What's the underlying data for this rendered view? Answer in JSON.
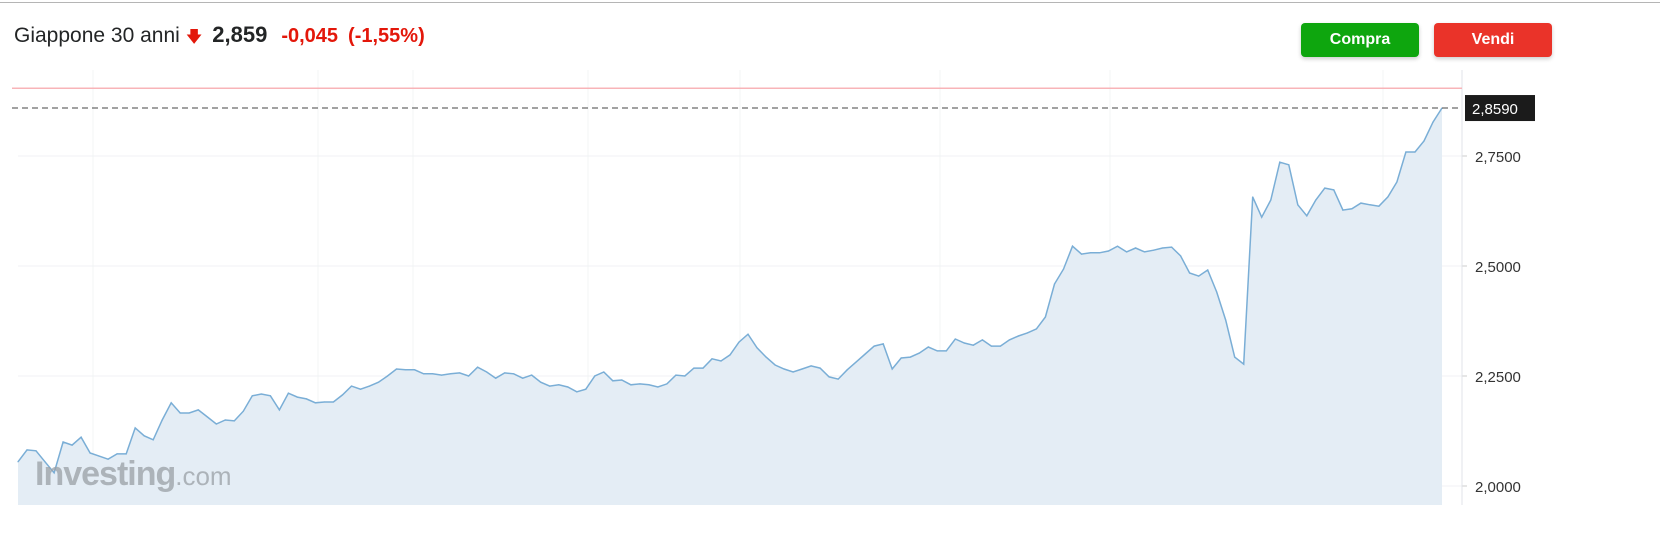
{
  "header": {
    "title": "Giappone 30 anni",
    "arrow_icon": "arrow-down-icon",
    "price": "2,859",
    "change": "-0,045",
    "change_pct": "(-1,55%)"
  },
  "buttons": {
    "buy": "Compra",
    "sell": "Vendi"
  },
  "logo": {
    "name": "Investing",
    "suffix": ".com"
  },
  "colors": {
    "line": "#7aaed6",
    "fill": "#e4edf5",
    "buy": "#0ea60e",
    "sell": "#ea3329",
    "prev_close": "#f8b4b8",
    "down": "#e3170a"
  },
  "chart_data": {
    "type": "area",
    "title": "",
    "xlabel": "",
    "ylabel": "",
    "ylim": [
      2.0,
      2.92
    ],
    "y_ticks": [
      "2,0000",
      "2,2500",
      "2,5000",
      "2,7500"
    ],
    "y_tick_values": [
      2.0,
      2.25,
      2.5,
      2.75
    ],
    "last_value": 2.859,
    "last_label": "2,8590",
    "previous_close": 2.904,
    "grid": true,
    "y_axis": "right",
    "values": [
      2.055,
      2.082,
      2.08,
      2.055,
      2.03,
      2.1,
      2.093,
      2.111,
      2.075,
      2.068,
      2.061,
      2.073,
      2.073,
      2.132,
      2.114,
      2.105,
      2.15,
      2.189,
      2.166,
      2.166,
      2.173,
      2.157,
      2.141,
      2.15,
      2.148,
      2.17,
      2.205,
      2.209,
      2.205,
      2.173,
      2.211,
      2.202,
      2.198,
      2.189,
      2.191,
      2.191,
      2.207,
      2.227,
      2.22,
      2.227,
      2.236,
      2.25,
      2.266,
      2.264,
      2.264,
      2.255,
      2.255,
      2.252,
      2.255,
      2.257,
      2.25,
      2.27,
      2.259,
      2.245,
      2.257,
      2.255,
      2.245,
      2.252,
      2.236,
      2.227,
      2.23,
      2.225,
      2.214,
      2.22,
      2.25,
      2.259,
      2.239,
      2.241,
      2.23,
      2.232,
      2.23,
      2.225,
      2.232,
      2.252,
      2.25,
      2.268,
      2.268,
      2.289,
      2.284,
      2.298,
      2.327,
      2.345,
      2.314,
      2.293,
      2.275,
      2.266,
      2.259,
      2.266,
      2.273,
      2.268,
      2.248,
      2.243,
      2.264,
      2.282,
      2.3,
      2.318,
      2.323,
      2.266,
      2.291,
      2.293,
      2.302,
      2.316,
      2.307,
      2.307,
      2.334,
      2.325,
      2.32,
      2.332,
      2.318,
      2.318,
      2.332,
      2.341,
      2.348,
      2.357,
      2.384,
      2.459,
      2.493,
      2.545,
      2.527,
      2.53,
      2.53,
      2.534,
      2.545,
      2.532,
      2.541,
      2.532,
      2.536,
      2.541,
      2.543,
      2.523,
      2.484,
      2.477,
      2.491,
      2.441,
      2.377,
      2.293,
      2.277,
      2.657,
      2.611,
      2.65,
      2.736,
      2.73,
      2.639,
      2.614,
      2.65,
      2.677,
      2.673,
      2.627,
      2.63,
      2.643,
      2.639,
      2.636,
      2.657,
      2.691,
      2.759,
      2.759,
      2.784,
      2.827,
      2.859
    ]
  }
}
